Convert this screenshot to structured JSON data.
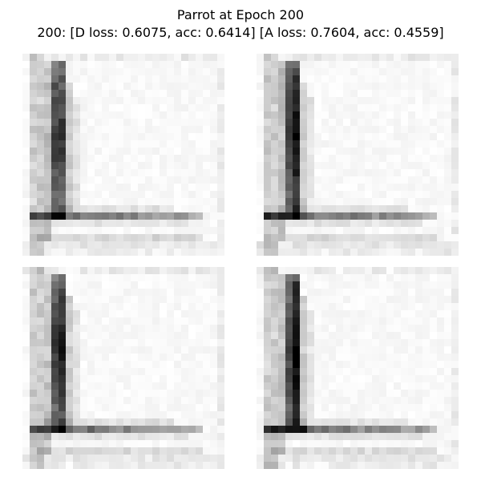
{
  "figure": {
    "title_line_1": "Parrot at Epoch 200",
    "title_line_2": "200: [D loss: 0.6075, acc: 0.6414]  [A loss: 0.7604, acc: 0.4559]",
    "colormap": "gray_r",
    "panels": [
      {
        "id": "generated-sample-1",
        "variant": 0
      },
      {
        "id": "generated-sample-2",
        "variant": 1
      },
      {
        "id": "generated-sample-3",
        "variant": 2
      },
      {
        "id": "generated-sample-4",
        "variant": 3
      }
    ]
  }
}
